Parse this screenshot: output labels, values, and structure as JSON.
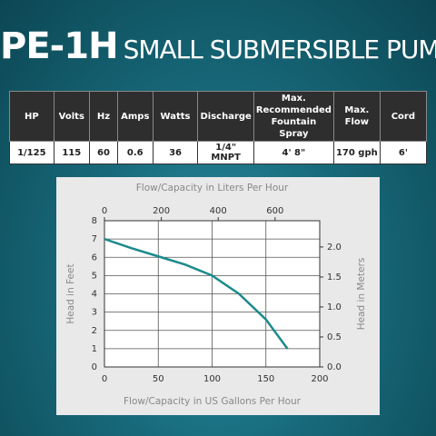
{
  "header": {
    "model": "PE-1H",
    "title": "SMALL SUBMERSIBLE PUMP"
  },
  "table": {
    "headers": [
      "HP",
      "Volts",
      "Hz",
      "Amps",
      "Watts",
      "Discharge",
      "Max. Recommended Fountain Spray",
      "Max. Flow",
      "Cord"
    ],
    "rows": [
      [
        "1/125",
        "115",
        "60",
        "0.6",
        "36",
        "1/4\" MNPT",
        "4' 8\"",
        "170 gph",
        "6'"
      ]
    ]
  },
  "chart_data": {
    "type": "line",
    "xlabel": "Flow/Capacity in US Gallons Per Hour",
    "x2label": "Flow/Capacity in Liters Per Hour",
    "ylabel": "Head in Feet",
    "y2label": "Head in Meters",
    "x": [
      0,
      25,
      50,
      75,
      100,
      125,
      150,
      170
    ],
    "values": [
      7,
      6.5,
      6.05,
      5.6,
      5.0,
      4.0,
      2.6,
      1
    ],
    "color": "#1b8a8c",
    "xlim": [
      0,
      200
    ],
    "xticks": [
      0,
      50,
      100,
      150,
      200
    ],
    "x2lim": [
      0,
      757
    ],
    "x2ticks": [
      0,
      200,
      400,
      600
    ],
    "ylim": [
      0,
      8
    ],
    "yticks": [
      0,
      1,
      2,
      3,
      4,
      5,
      6,
      7,
      8
    ],
    "y2lim": [
      0,
      2.438
    ],
    "y2ticks": [
      {
        "value": 0,
        "label": "0.0"
      },
      0.5,
      {
        "value": 1,
        "label": "1.0"
      },
      1.5,
      {
        "value": 2,
        "label": "2.0"
      }
    ],
    "grid": true
  }
}
